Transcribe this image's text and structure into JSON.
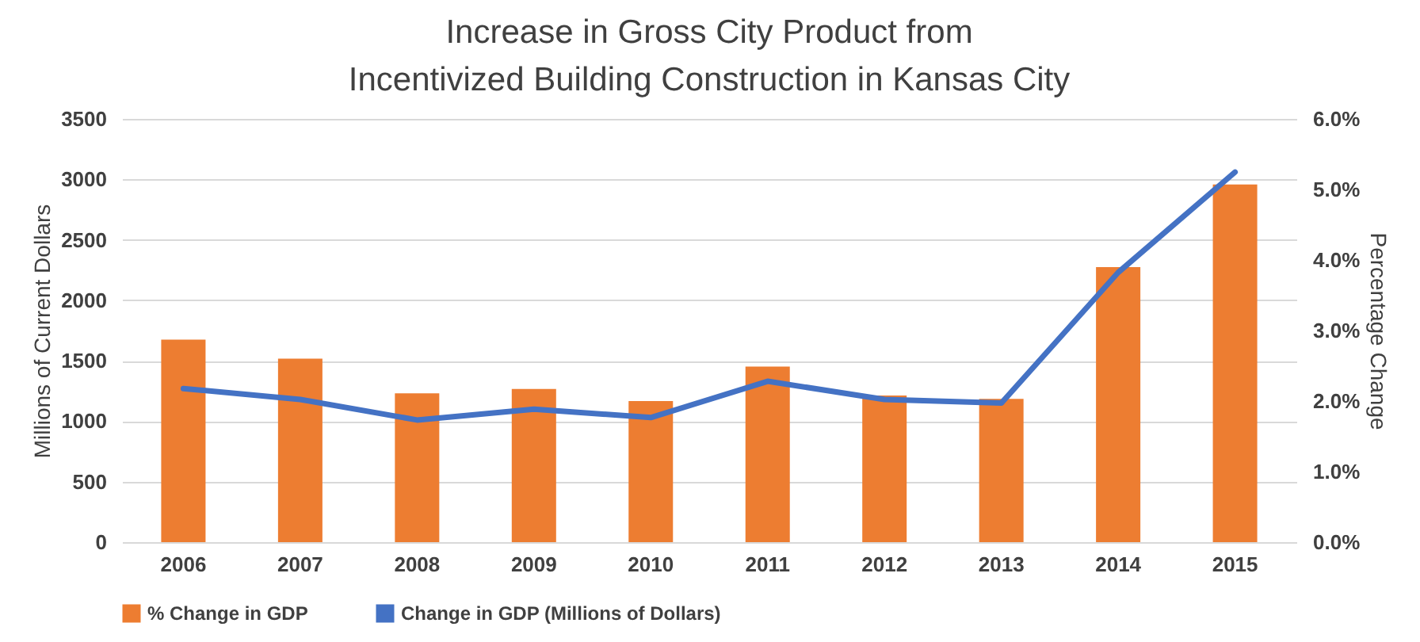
{
  "chart_data": {
    "type": "bar",
    "title": [
      "Increase in Gross City Product from",
      "Incentivized Building Construction in Kansas City"
    ],
    "ylabel": "Millions of Current Dollars",
    "y2label": "Percentage Change",
    "categories": [
      "2006",
      "2007",
      "2008",
      "2009",
      "2010",
      "2011",
      "2012",
      "2013",
      "2014",
      "2015"
    ],
    "series": [
      {
        "name": "% Change in GDP",
        "type": "bar",
        "axis": "y2",
        "color": "#ed7d31",
        "values": [
          2.87,
          2.6,
          2.11,
          2.17,
          2.0,
          2.49,
          2.08,
          2.03,
          3.9,
          5.07
        ]
      },
      {
        "name": "Change in GDP (Millions of Dollars)",
        "type": "line",
        "color": "#4472c4",
        "values": [
          1270,
          1180,
          1010,
          1100,
          1030,
          1330,
          1180,
          1150,
          2230,
          3060
        ]
      }
    ],
    "ylim": [
      0,
      3500
    ],
    "yticks": [
      0,
      500,
      1000,
      1500,
      2000,
      2500,
      3000,
      3500
    ],
    "y2lim": [
      0,
      6
    ],
    "y2ticks": [
      {
        "value": 0,
        "label": "0.0%"
      },
      {
        "value": 1,
        "label": "1.0%"
      },
      {
        "value": 2,
        "label": "2.0%"
      },
      {
        "value": 3,
        "label": "3.0%"
      },
      {
        "value": 4,
        "label": "4.0%"
      },
      {
        "value": 5,
        "label": "5.0%"
      },
      {
        "value": 6,
        "label": "6.0%"
      }
    ],
    "grid": "y",
    "legend": "bottom"
  }
}
